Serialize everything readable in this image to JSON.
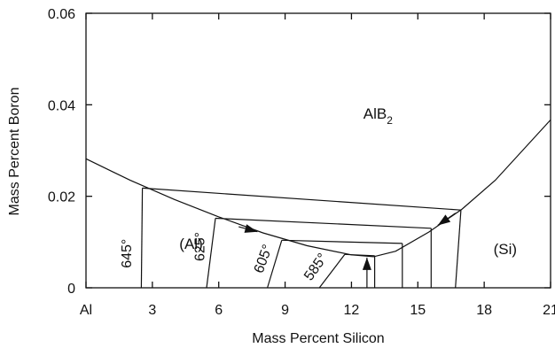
{
  "chart_data": {
    "type": "line",
    "xlabel": "Mass Percent  Silicon",
    "ylabel": "Mass Percent  Boron",
    "xlim": [
      0,
      21
    ],
    "ylim": [
      0,
      0.06
    ],
    "x_ticks": [
      {
        "value": 0,
        "label": "Al"
      },
      {
        "value": 3,
        "label": "3"
      },
      {
        "value": 6,
        "label": "6"
      },
      {
        "value": 9,
        "label": "9"
      },
      {
        "value": 12,
        "label": "12"
      },
      {
        "value": 15,
        "label": "15"
      },
      {
        "value": 18,
        "label": "18"
      },
      {
        "value": 21,
        "label": "21"
      }
    ],
    "y_ticks": [
      {
        "value": 0,
        "label": "0"
      },
      {
        "value": 0.02,
        "label": "0.02"
      },
      {
        "value": 0.04,
        "label": "0.04"
      },
      {
        "value": 0.06,
        "label": "0.06"
      }
    ],
    "liquidus_boundary": {
      "x": [
        0,
        2.0,
        4.0,
        6.0,
        8.0,
        10.0,
        12.0,
        13.0,
        14.0,
        15.5,
        17.0,
        18.5,
        21.0
      ],
      "y": [
        0.0282,
        0.0235,
        0.0193,
        0.0155,
        0.012,
        0.0092,
        0.0072,
        0.0068,
        0.008,
        0.0122,
        0.0172,
        0.0235,
        0.0367
      ]
    },
    "tie_lines": [
      {
        "x": [
          2.55,
          16.95
        ],
        "y": [
          0.0218,
          0.017
        ]
      },
      {
        "x": [
          5.85,
          15.6
        ],
        "y": [
          0.0152,
          0.013
        ]
      },
      {
        "x": [
          8.85,
          14.3
        ],
        "y": [
          0.0104,
          0.0097
        ]
      },
      {
        "x": [
          11.7,
          13.05
        ],
        "y": [
          0.0073,
          0.007
        ]
      }
    ],
    "isotherm_lines": [
      {
        "x": [
          2.55,
          2.5
        ],
        "y": [
          0.0218,
          0
        ]
      },
      {
        "x": [
          5.85,
          5.45
        ],
        "y": [
          0.0152,
          0
        ]
      },
      {
        "x": [
          8.85,
          8.2
        ],
        "y": [
          0.0104,
          0
        ]
      },
      {
        "x": [
          11.7,
          10.55
        ],
        "y": [
          0.0073,
          0
        ]
      },
      {
        "x": [
          13.05,
          13.05
        ],
        "y": [
          0.007,
          0
        ]
      },
      {
        "x": [
          14.3,
          14.3
        ],
        "y": [
          0.0097,
          0
        ]
      },
      {
        "x": [
          15.6,
          15.6
        ],
        "y": [
          0.013,
          0
        ]
      },
      {
        "x": [
          16.95,
          16.7
        ],
        "y": [
          0.017,
          0
        ]
      }
    ],
    "arrows": [
      {
        "from": [
          6.9,
          0.01335
        ],
        "to": [
          7.75,
          0.01225
        ]
      },
      {
        "from": [
          16.7,
          0.0163
        ],
        "to": [
          15.9,
          0.01365
        ]
      },
      {
        "from": [
          12.7,
          0
        ],
        "to": [
          12.7,
          0.0066
        ]
      }
    ],
    "annotations": [
      {
        "text": "AlB",
        "subscript": "2",
        "x": 13.2,
        "y": 0.037,
        "rotate": 0,
        "kind": "region"
      },
      {
        "text": "(Al)",
        "x": 4.75,
        "y": 0.0085,
        "rotate": 0,
        "kind": "region"
      },
      {
        "text": "(Si)",
        "x": 18.95,
        "y": 0.0074,
        "rotate": 0,
        "kind": "region"
      },
      {
        "text": "645°",
        "x": 2.05,
        "y": 0.0075,
        "rotate": -90,
        "kind": "isotherm"
      },
      {
        "text": "625°",
        "x": 5.35,
        "y": 0.009,
        "rotate": -90,
        "kind": "isotherm"
      },
      {
        "text": "605°",
        "x": 8.2,
        "y": 0.006,
        "rotate": -70,
        "kind": "isotherm"
      },
      {
        "text": "585°",
        "x": 10.55,
        "y": 0.004,
        "rotate": -55,
        "kind": "isotherm"
      }
    ]
  }
}
